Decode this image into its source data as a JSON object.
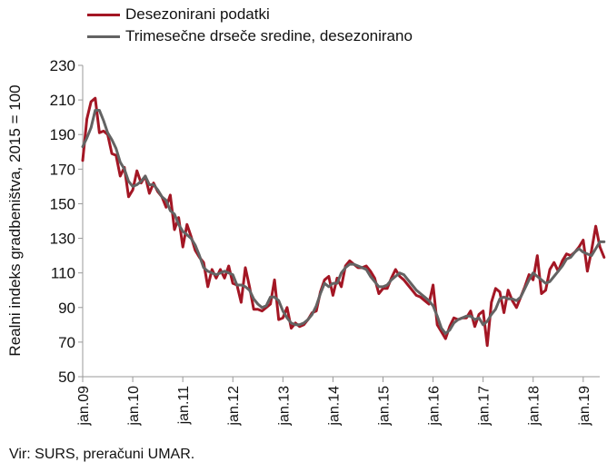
{
  "chart_data": {
    "type": "line",
    "title": "",
    "xlabel": "",
    "ylabel": "Realni indeks gradbeništva, 2015 = 100",
    "ylim": [
      50,
      230
    ],
    "yticks": [
      50,
      70,
      90,
      110,
      130,
      150,
      170,
      190,
      210,
      230
    ],
    "xlim": [
      2009.0,
      2019.33
    ],
    "xtick_labels": [
      "jan.09",
      "jan.10",
      "jan.11",
      "jan.12",
      "jan.13",
      "jan.14",
      "jan.15",
      "jan.16",
      "jan.17",
      "jan.18",
      "jan.19"
    ],
    "xtick_values": [
      2009,
      2010,
      2011,
      2012,
      2013,
      2014,
      2015,
      2016,
      2017,
      2018,
      2019
    ],
    "legend_position": "top-left",
    "series": [
      {
        "name": "Desezonirani podatki",
        "color": "#a31624",
        "values": [
          175,
          199,
          209,
          211,
          191,
          192,
          190,
          179,
          178,
          166,
          171,
          154,
          158,
          169,
          162,
          166,
          156,
          162,
          157,
          154,
          148,
          155,
          135,
          142,
          125,
          138,
          131,
          123,
          119,
          116,
          102,
          112,
          107,
          112,
          107,
          114,
          104,
          103,
          93,
          113,
          102,
          89,
          89,
          88,
          90,
          92,
          106,
          83,
          84,
          90,
          78,
          81,
          79,
          80,
          83,
          87,
          88,
          99,
          106,
          108,
          97,
          107,
          102,
          114,
          117,
          115,
          113,
          113,
          114,
          111,
          107,
          98,
          101,
          101,
          107,
          112,
          108,
          106,
          103,
          100,
          97,
          96,
          94,
          92,
          103,
          80,
          76,
          72,
          79,
          84,
          83,
          84,
          84,
          88,
          79,
          86,
          88,
          68,
          93,
          101,
          99,
          87,
          100,
          94,
          90,
          96,
          102,
          109,
          106,
          120,
          98,
          100,
          112,
          116,
          111,
          117,
          121,
          120,
          122,
          125,
          129,
          111,
          123,
          137,
          125,
          119
        ]
      },
      {
        "name": "Trimesečne drseče sredine, desezonirano",
        "color": "#636363",
        "values": [
          183,
          188,
          194,
          204,
          204,
          198,
          191,
          187,
          182,
          174,
          170,
          163,
          160,
          161,
          163,
          166,
          161,
          161,
          158,
          154,
          152,
          146,
          144,
          138,
          134,
          132,
          130,
          126,
          120,
          113,
          111,
          110,
          109,
          110,
          111,
          110,
          109,
          103,
          103,
          102,
          100,
          95,
          92,
          90,
          91,
          96,
          96,
          94,
          88,
          84,
          81,
          80,
          80,
          81,
          83,
          86,
          91,
          98,
          104,
          102,
          104,
          104,
          110,
          113,
          115,
          115,
          114,
          113,
          112,
          108,
          105,
          102,
          102,
          103,
          106,
          108,
          110,
          109,
          106,
          103,
          100,
          98,
          96,
          94,
          91,
          85,
          78,
          75,
          77,
          81,
          83,
          84,
          85,
          85,
          83,
          84,
          80,
          82,
          86,
          89,
          95,
          96,
          95,
          95,
          94,
          96,
          101,
          106,
          110,
          108,
          106,
          104,
          105,
          108,
          111,
          114,
          118,
          119,
          122,
          124,
          122,
          121,
          120,
          124,
          128,
          128
        ]
      }
    ]
  },
  "legend": {
    "items": [
      {
        "label": "Desezonirani podatki",
        "color": "#a31624"
      },
      {
        "label": "Trimesečne drseče sredine, desezonirano",
        "color": "#636363"
      }
    ]
  },
  "source": "Vir: SURS, preračuni UMAR."
}
